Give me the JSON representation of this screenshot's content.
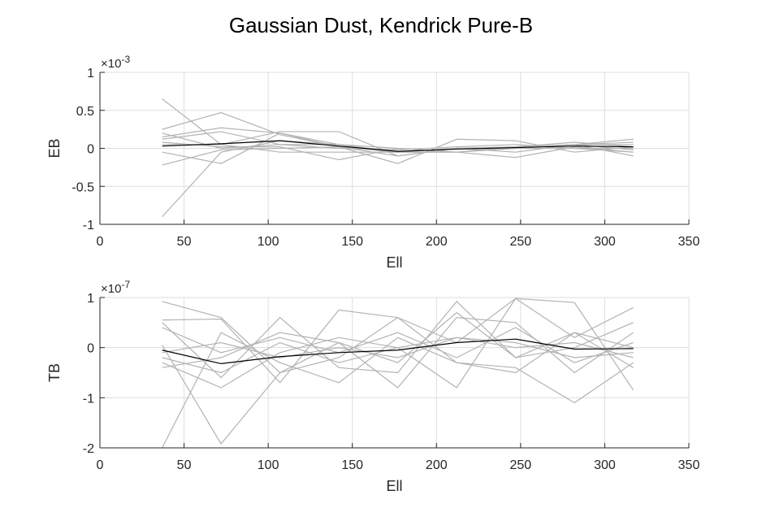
{
  "title": "Gaussian Dust, Kendrick Pure-B",
  "colors": {
    "realization": "#b3b3b3",
    "mean": "#000000",
    "grid": "#dedede",
    "axis": "#262626"
  },
  "chart_data": [
    {
      "type": "line",
      "name": "eb",
      "xlabel": "Ell",
      "ylabel": "EB",
      "multiplier_base": "×10",
      "multiplier_exp": "-3",
      "xlim": [
        0,
        350
      ],
      "ylim": [
        -1,
        1
      ],
      "xticks": [
        0,
        50,
        100,
        150,
        200,
        250,
        300,
        350
      ],
      "yticks": [
        -1,
        -0.5,
        0,
        0.5,
        1
      ],
      "ytick_labels": [
        "-1",
        "-0.5",
        "0",
        "0.5",
        "1"
      ],
      "grid": true,
      "x": [
        37,
        72,
        107,
        142,
        177,
        212,
        247,
        282,
        317
      ],
      "series": [
        {
          "values": [
            0.65,
            0.05,
            0.22,
            0.22,
            -0.1,
            0.0,
            0.02,
            0.08,
            0.02
          ]
        },
        {
          "values": [
            0.25,
            0.47,
            0.18,
            0.02,
            -0.1,
            0.0,
            -0.05,
            0.05,
            0.08
          ]
        },
        {
          "values": [
            -0.9,
            -0.05,
            0.1,
            0.05,
            -0.05,
            -0.05,
            0.0,
            0.0,
            0.0
          ]
        },
        {
          "values": [
            0.12,
            0.22,
            0.05,
            0.0,
            -0.02,
            0.02,
            0.05,
            0.0,
            -0.05
          ]
        },
        {
          "values": [
            0.05,
            0.05,
            -0.05,
            -0.05,
            -0.05,
            0.0,
            0.0,
            0.05,
            0.12
          ]
        },
        {
          "values": [
            -0.22,
            -0.02,
            0.0,
            0.02,
            -0.05,
            -0.05,
            0.02,
            0.05,
            0.05
          ]
        },
        {
          "values": [
            0.2,
            0.0,
            0.05,
            0.05,
            0.0,
            -0.05,
            0.0,
            0.05,
            -0.02
          ]
        },
        {
          "values": [
            -0.05,
            -0.2,
            0.2,
            0.05,
            -0.05,
            0.0,
            0.0,
            0.05,
            -0.1
          ]
        },
        {
          "values": [
            0.15,
            0.27,
            0.2,
            0.02,
            -0.2,
            0.12,
            0.1,
            -0.05,
            0.02
          ]
        },
        {
          "values": [
            0.08,
            0.02,
            0.02,
            -0.15,
            0.0,
            -0.05,
            -0.12,
            0.02,
            -0.05
          ]
        }
      ],
      "mean": [
        0.03,
        0.06,
        0.1,
        0.03,
        -0.04,
        -0.01,
        0.01,
        0.03,
        0.02
      ]
    },
    {
      "type": "line",
      "name": "tb",
      "xlabel": "Ell",
      "ylabel": "TB",
      "multiplier_base": "×10",
      "multiplier_exp": "-7",
      "xlim": [
        0,
        350
      ],
      "ylim": [
        -2,
        1
      ],
      "xticks": [
        0,
        50,
        100,
        150,
        200,
        250,
        300,
        350
      ],
      "yticks": [
        -2,
        -1,
        0,
        1
      ],
      "ytick_labels": [
        "-2",
        "-1",
        "0",
        "1"
      ],
      "grid": true,
      "x": [
        37,
        72,
        107,
        142,
        177,
        212,
        247,
        282,
        317
      ],
      "series": [
        {
          "values": [
            0.92,
            0.6,
            -0.5,
            -0.2,
            0.6,
            -0.3,
            -0.4,
            -1.1,
            -0.3
          ]
        },
        {
          "values": [
            0.55,
            0.57,
            -0.7,
            0.75,
            0.6,
            0.1,
            0.98,
            0.9,
            -0.85
          ]
        },
        {
          "values": [
            0.5,
            -0.6,
            0.6,
            -0.4,
            -0.5,
            0.92,
            -0.2,
            0.3,
            -0.4
          ]
        },
        {
          "values": [
            -0.3,
            -0.8,
            -0.1,
            0.2,
            0.0,
            -0.8,
            0.98,
            0.2,
            0.8
          ]
        },
        {
          "values": [
            -2.0,
            0.3,
            -0.3,
            -0.7,
            0.2,
            -0.3,
            -0.5,
            0.3,
            0.0
          ]
        },
        {
          "values": [
            0.05,
            -1.92,
            -0.5,
            0.1,
            -0.8,
            0.6,
            0.5,
            -0.5,
            0.3
          ]
        },
        {
          "values": [
            -0.4,
            -0.2,
            0.3,
            0.1,
            -0.3,
            0.7,
            -0.2,
            0.0,
            0.5
          ]
        },
        {
          "values": [
            -0.2,
            -0.5,
            0.1,
            -0.3,
            0.0,
            0.2,
            0.1,
            -0.2,
            -0.1
          ]
        },
        {
          "values": [
            0.4,
            -0.1,
            0.2,
            -0.1,
            0.3,
            -0.2,
            0.4,
            -0.3,
            0.1
          ]
        },
        {
          "values": [
            -0.1,
            0.1,
            -0.2,
            0.0,
            -0.2,
            0.2,
            0.0,
            0.1,
            -0.2
          ]
        }
      ],
      "mean": [
        -0.05,
        -0.32,
        -0.18,
        -0.1,
        -0.05,
        0.1,
        0.17,
        -0.03,
        -0.02
      ]
    }
  ]
}
